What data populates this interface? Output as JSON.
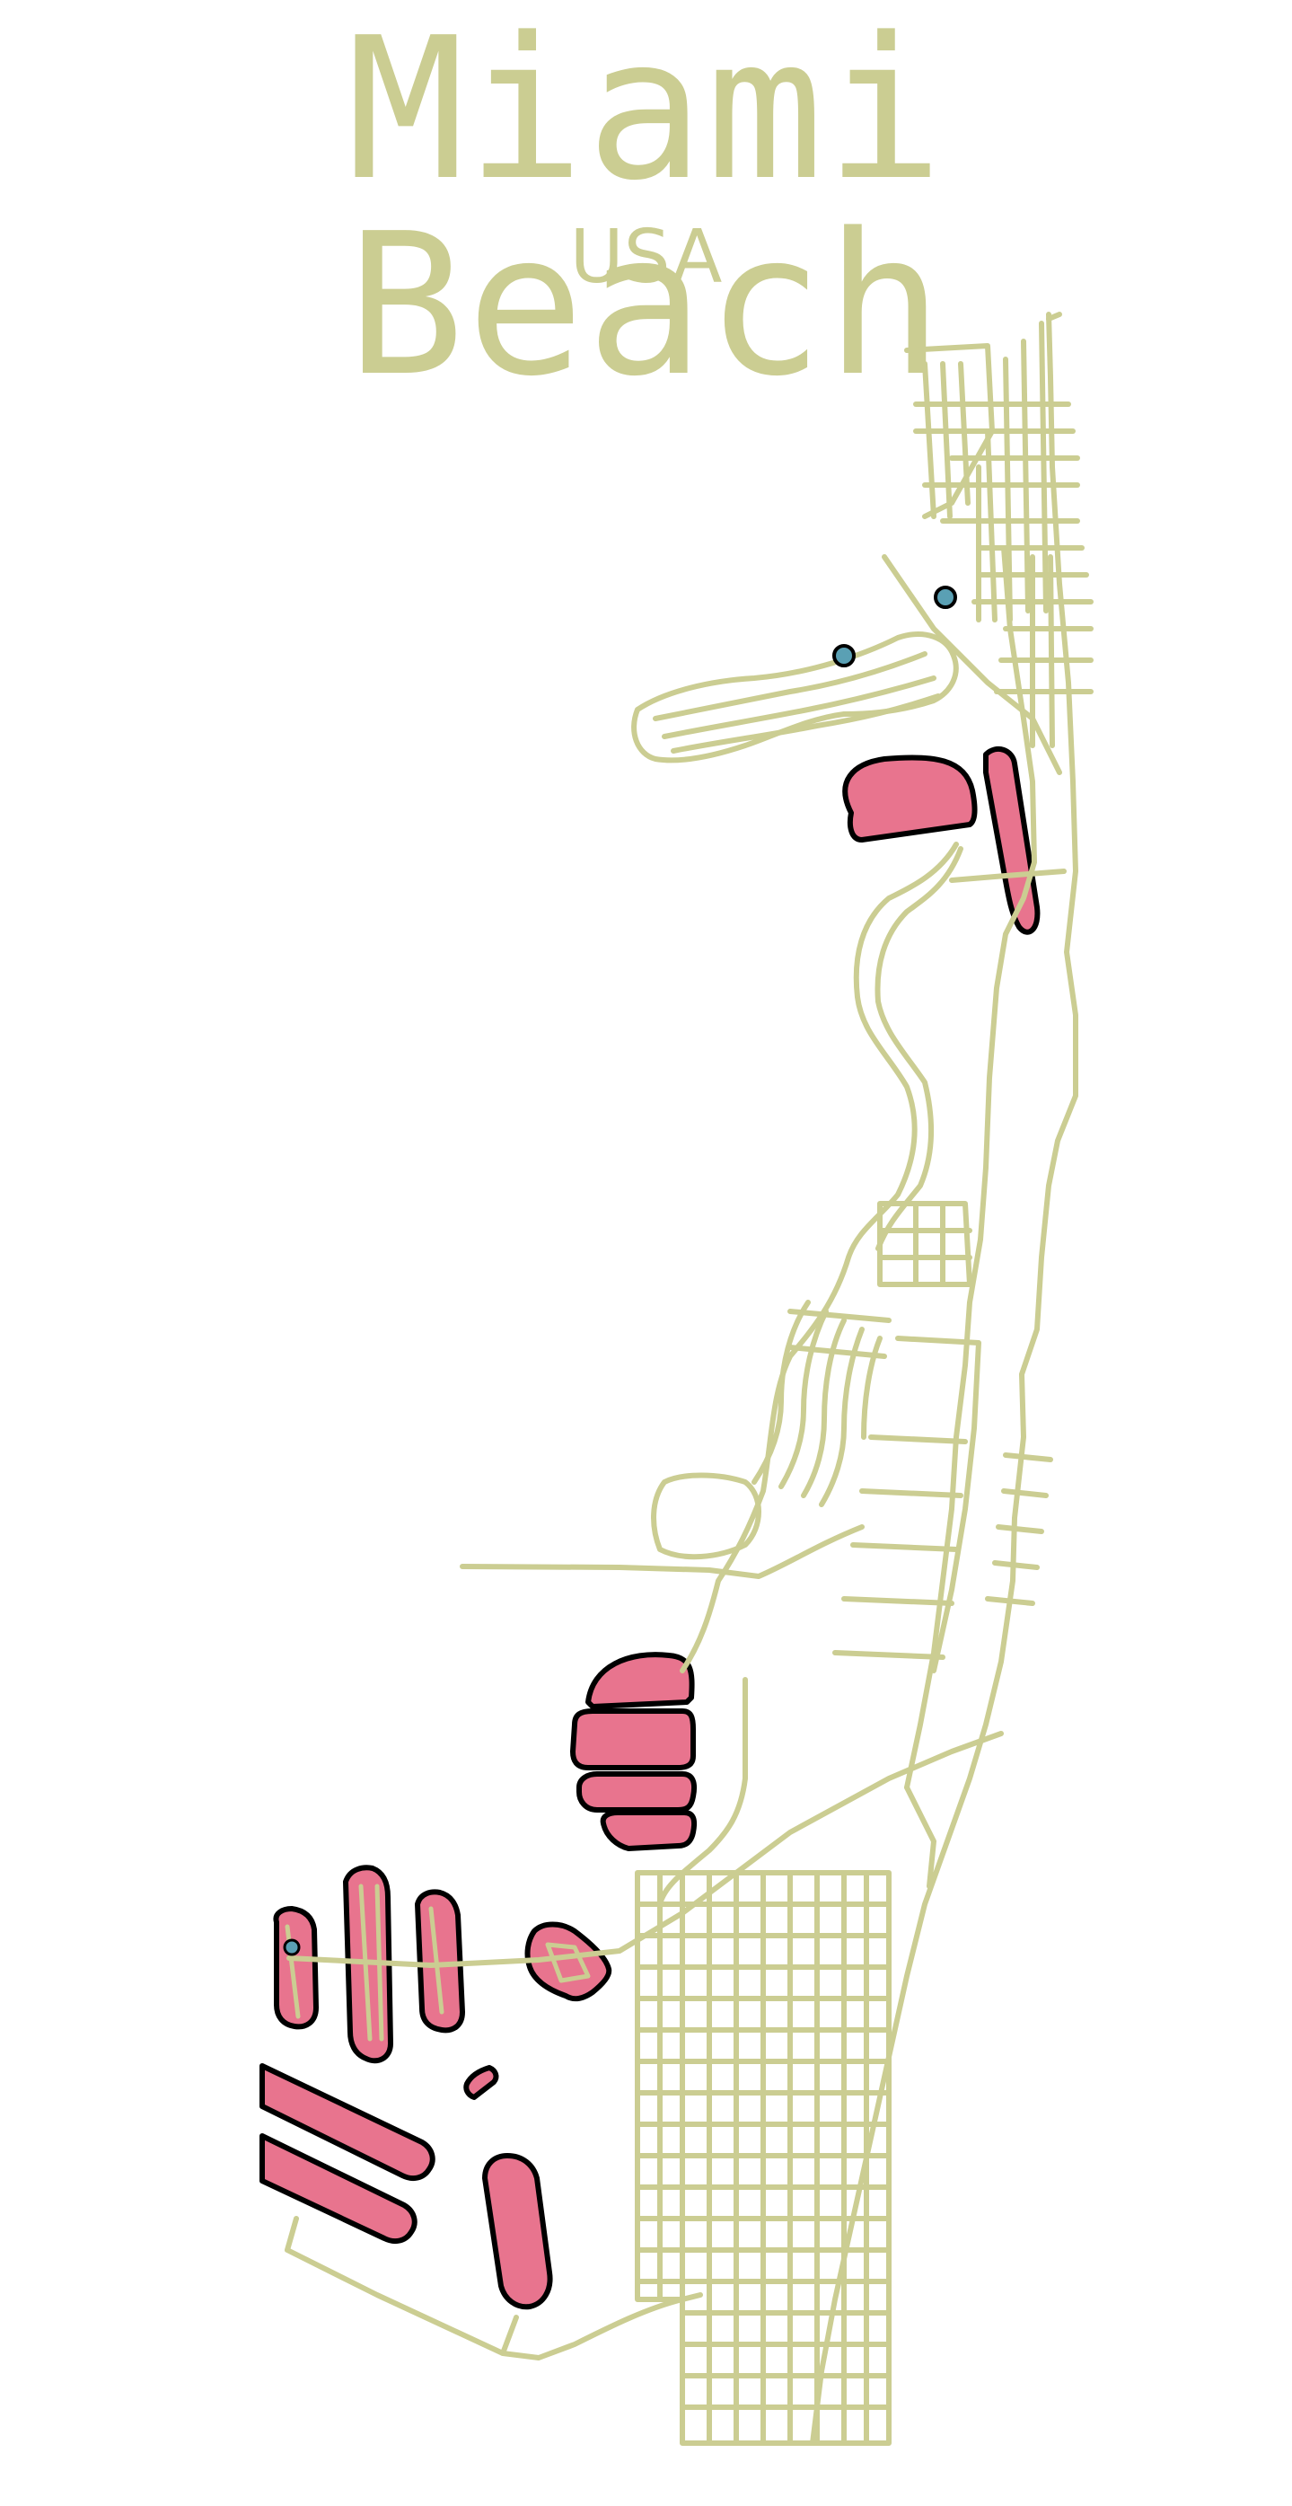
{
  "title": "Miami Beach",
  "subtitle": "USA",
  "colors": {
    "background": "#ffffff",
    "text": "#cbcd92",
    "roads": "#cbcd92",
    "islands": "#e8748e",
    "outline": "#000000",
    "water_dots": "#5aa0b4"
  }
}
